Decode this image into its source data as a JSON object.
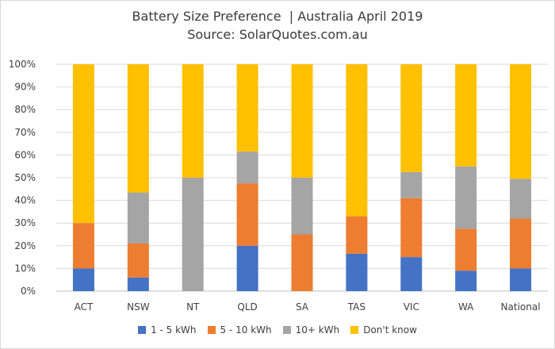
{
  "chart_data": {
    "type": "bar",
    "stacked": true,
    "title": "Battery Size Preference  | Australia April 2019",
    "subtitle": "Source: SolarQuotes.com.au",
    "categories": [
      "ACT",
      "NSW",
      "NT",
      "QLD",
      "SA",
      "TAS",
      "VIC",
      "WA",
      "National"
    ],
    "series": [
      {
        "name": "1 - 5 kWh",
        "color": "#4472c4",
        "values": [
          10,
          6,
          0,
          20,
          0,
          16.5,
          15,
          9,
          10
        ]
      },
      {
        "name": "5 - 10 kWh",
        "color": "#ed7d31",
        "values": [
          20,
          15,
          0,
          27.5,
          25,
          16.5,
          26,
          18.5,
          22
        ]
      },
      {
        "name": "10+ kWh",
        "color": "#a5a5a5",
        "values": [
          0,
          22.5,
          50,
          14,
          25,
          0,
          11.5,
          27.5,
          17.5
        ]
      },
      {
        "name": "Don't know",
        "color": "#ffc000",
        "values": [
          70,
          56.5,
          50,
          38.5,
          50,
          67,
          47.5,
          45,
          50.5
        ]
      }
    ],
    "ylim": [
      0,
      100
    ],
    "ytick_step": 10,
    "ytick_suffix": "%",
    "xlabel": "",
    "ylabel": "",
    "grid": true,
    "legend_position": "bottom"
  }
}
